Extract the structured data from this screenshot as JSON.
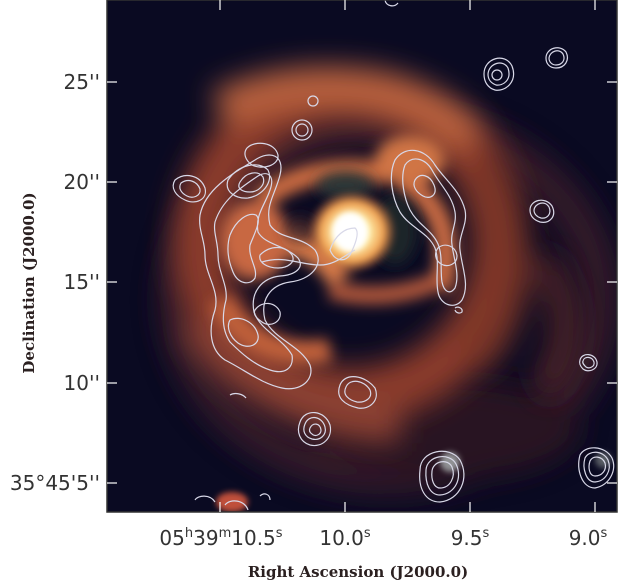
{
  "figure": {
    "xlabel": "Right Ascension (J2000.0)",
    "ylabel": "Declination (J2000.0)",
    "x_ticks": [
      {
        "h": "05",
        "h_unit": "h",
        "m": "39",
        "m_unit": "m",
        "s": "10.5",
        "s_unit": "s"
      },
      {
        "s": "10.0",
        "s_unit": "s"
      },
      {
        "s": "9.5",
        "s_unit": "s"
      },
      {
        "s": "9.0",
        "s_unit": "s"
      }
    ],
    "y_ticks": [
      "25''",
      "20''",
      "15''",
      "10''",
      "35°45'5''"
    ],
    "colors": {
      "background": "#0a0a22",
      "emission": "#c0603a",
      "peak": "#fff6c8",
      "contours": "#d8d8e8",
      "frame": "#222222"
    }
  }
}
